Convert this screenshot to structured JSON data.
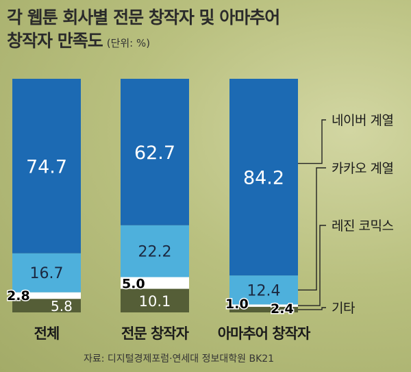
{
  "title": {
    "line1": "각 웹툰 회사별 전문 창작자 및 아마추어",
    "line2": "창작자 만족도",
    "unit": "(단위: %)"
  },
  "source": "자료: 디지털경제포럼·연세대 정보대학원 BK21",
  "colors": {
    "naver": "#1c6ab3",
    "kakao": "#4eb0dc",
    "lezhin": "#ffffff",
    "other": "#555e37"
  },
  "chart_data": {
    "type": "bar",
    "stacked": true,
    "unit": "%",
    "categories": [
      "전체",
      "전문 창작자",
      "아마추어 창작자"
    ],
    "ylim": [
      0,
      100
    ],
    "series": [
      {
        "name": "기타",
        "values": [
          5.8,
          10.1,
          2.4
        ]
      },
      {
        "name": "레진 코믹스",
        "values": [
          2.8,
          5.0,
          1.0
        ]
      },
      {
        "name": "카카오 계열",
        "values": [
          16.7,
          22.2,
          12.4
        ]
      },
      {
        "name": "네이버 계열",
        "values": [
          74.7,
          62.7,
          84.2
        ]
      }
    ],
    "value_labels": [
      [
        "5.8",
        "2.8",
        "16.7",
        "74.7"
      ],
      [
        "10.1",
        "5.0",
        "22.2",
        "62.7"
      ],
      [
        "2.4",
        "1.0",
        "12.4",
        "84.2"
      ]
    ],
    "legend_position": "right"
  }
}
